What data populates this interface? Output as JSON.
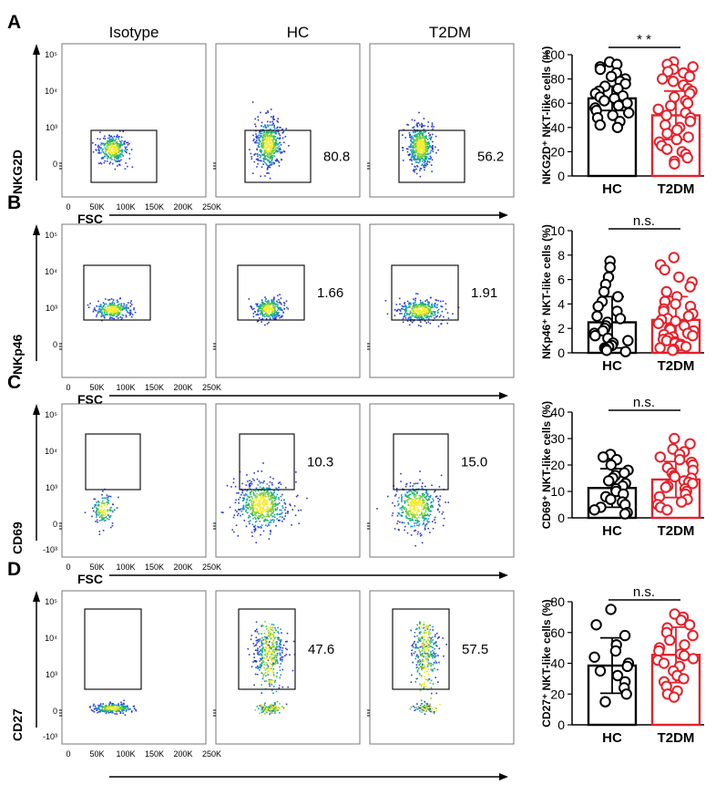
{
  "figure": {
    "column_headers": [
      "Isotype",
      "HC",
      "T2DM"
    ],
    "x_axis_label": "FSC",
    "x_ticks": [
      "0",
      "50K",
      "100K",
      "150K",
      "200K",
      "250K"
    ],
    "colors": {
      "hc": "#000000",
      "t2dm": "#e8202a",
      "density_low": "#2b3bd1",
      "density_mid": "#1fb36b",
      "density_high": "#f2e421"
    }
  },
  "panels": [
    {
      "letter": "A",
      "marker": "NKG2D",
      "y_ticks": [
        "10⁵",
        "10⁴",
        "10³",
        "0"
      ],
      "gate_values": [
        "80.8",
        "56.2"
      ],
      "bar_ylabel": "NKG2D⁺ NKT-like cells (%)",
      "bar_ticks": [
        "0",
        "20",
        "40",
        "60",
        "80",
        "100"
      ],
      "significance": "* *"
    },
    {
      "letter": "B",
      "marker": "NKp46",
      "y_ticks": [
        "10⁵",
        "10⁴",
        "10³",
        "0"
      ],
      "gate_values": [
        "1.66",
        "1.91"
      ],
      "bar_ylabel": "NKp46⁺ NKT-like cells (%)",
      "bar_ticks": [
        "0",
        "2",
        "4",
        "6",
        "8",
        "10"
      ],
      "significance": "n.s."
    },
    {
      "letter": "C",
      "marker": "CD69",
      "y_ticks": [
        "10⁵",
        "10⁴",
        "10³",
        "0",
        "-10³"
      ],
      "gate_values": [
        "10.3",
        "15.0"
      ],
      "bar_ylabel": "CD69⁺ NKT-like cells (%)",
      "bar_ticks": [
        "0",
        "10",
        "20",
        "30",
        "40"
      ],
      "significance": "n.s."
    },
    {
      "letter": "D",
      "marker": "CD27",
      "y_ticks": [
        "10⁵",
        "10⁴",
        "10³",
        "0",
        "-10³"
      ],
      "gate_values": [
        "47.6",
        "57.5"
      ],
      "bar_ylabel": "CD27⁺ NKT-like cells (%)",
      "bar_ticks": [
        "0",
        "20",
        "40",
        "60",
        "80"
      ],
      "significance": "n.s."
    }
  ],
  "chart_data": [
    {
      "type": "bar",
      "title": "NKG2D⁺ NKT-like cells",
      "ylabel": "NKG2D⁺ NKT-like cells (%)",
      "categories": [
        "HC",
        "T2DM"
      ],
      "ylim": [
        0,
        100
      ],
      "series": [
        {
          "name": "HC",
          "mean": 64,
          "sd": 10,
          "points": [
            94,
            92,
            90,
            88,
            85,
            82,
            80,
            78,
            76,
            74,
            72,
            70,
            68,
            66,
            65,
            64,
            62,
            60,
            58,
            56,
            54,
            52,
            50,
            48,
            45,
            42,
            40
          ]
        },
        {
          "name": "T2DM",
          "mean": 50,
          "sd": 20,
          "points": [
            94,
            92,
            90,
            88,
            86,
            85,
            82,
            80,
            78,
            75,
            72,
            70,
            68,
            65,
            62,
            60,
            58,
            55,
            52,
            50,
            48,
            45,
            42,
            40,
            38,
            35,
            32,
            30,
            28,
            25,
            22,
            20,
            18,
            15,
            12,
            10
          ]
        }
      ],
      "significance": "**"
    },
    {
      "type": "bar",
      "title": "NKp46⁺ NKT-like cells",
      "ylabel": "NKp46⁺ NKT-like cells (%)",
      "categories": [
        "HC",
        "T2DM"
      ],
      "ylim": [
        0,
        10
      ],
      "series": [
        {
          "name": "HC",
          "mean": 2.5,
          "sd": 2.1,
          "points": [
            7.5,
            7.0,
            6.2,
            5.6,
            5.0,
            4.6,
            4.2,
            3.8,
            3.4,
            3.0,
            2.8,
            2.5,
            2.2,
            2.0,
            1.8,
            1.6,
            1.4,
            1.2,
            1.0,
            0.8,
            0.6,
            0.5,
            0.4,
            0.3,
            0.2,
            0.1
          ]
        },
        {
          "name": "T2DM",
          "mean": 2.7,
          "sd": 1.9,
          "points": [
            7.8,
            7.2,
            6.8,
            6.2,
            5.8,
            5.4,
            5.0,
            4.6,
            4.2,
            4.0,
            3.8,
            3.6,
            3.4,
            3.2,
            3.0,
            2.8,
            2.7,
            2.6,
            2.4,
            2.2,
            2.0,
            1.9,
            1.8,
            1.6,
            1.5,
            1.4,
            1.3,
            1.2,
            1.1,
            1.0,
            0.9,
            0.8,
            0.7,
            0.6,
            0.5,
            0.4,
            0.3,
            0.2
          ]
        }
      ],
      "significance": "n.s."
    },
    {
      "type": "bar",
      "title": "CD69⁺ NKT-like cells",
      "ylabel": "CD69⁺ NKT-like cells (%)",
      "categories": [
        "HC",
        "T2DM"
      ],
      "ylim": [
        0,
        40
      ],
      "series": [
        {
          "name": "HC",
          "mean": 11.3,
          "sd": 7.3,
          "points": [
            24,
            23,
            22,
            20,
            18,
            17,
            16,
            15,
            14,
            13,
            12,
            11,
            10,
            9,
            8,
            7,
            6,
            5,
            4,
            3,
            2,
            1.5
          ]
        },
        {
          "name": "T2DM",
          "mean": 14.5,
          "sd": 6.8,
          "points": [
            30,
            28,
            26,
            25,
            24,
            23,
            22,
            21,
            20,
            19,
            18,
            17,
            16,
            15.5,
            15,
            14,
            13.5,
            13,
            12,
            11.5,
            11,
            10,
            9,
            8,
            7,
            6,
            5,
            4,
            3
          ]
        }
      ],
      "significance": "n.s."
    },
    {
      "type": "bar",
      "title": "CD27⁺ NKT-like cells",
      "ylabel": "CD27⁺ NKT-like cells (%)",
      "categories": [
        "HC",
        "T2DM"
      ],
      "ylim": [
        0,
        80
      ],
      "series": [
        {
          "name": "HC",
          "mean": 38.5,
          "sd": 18,
          "points": [
            75,
            65,
            58,
            52,
            48,
            44,
            40,
            38,
            35,
            32,
            28,
            24,
            20,
            15
          ]
        },
        {
          "name": "T2DM",
          "mean": 45.5,
          "sd": 18,
          "points": [
            72,
            70,
            68,
            65,
            63,
            60,
            58,
            55,
            52,
            50,
            48,
            46,
            45,
            43,
            42,
            40,
            38,
            35,
            32,
            30,
            28,
            25,
            22,
            20,
            18
          ]
        }
      ],
      "significance": "n.s."
    }
  ]
}
